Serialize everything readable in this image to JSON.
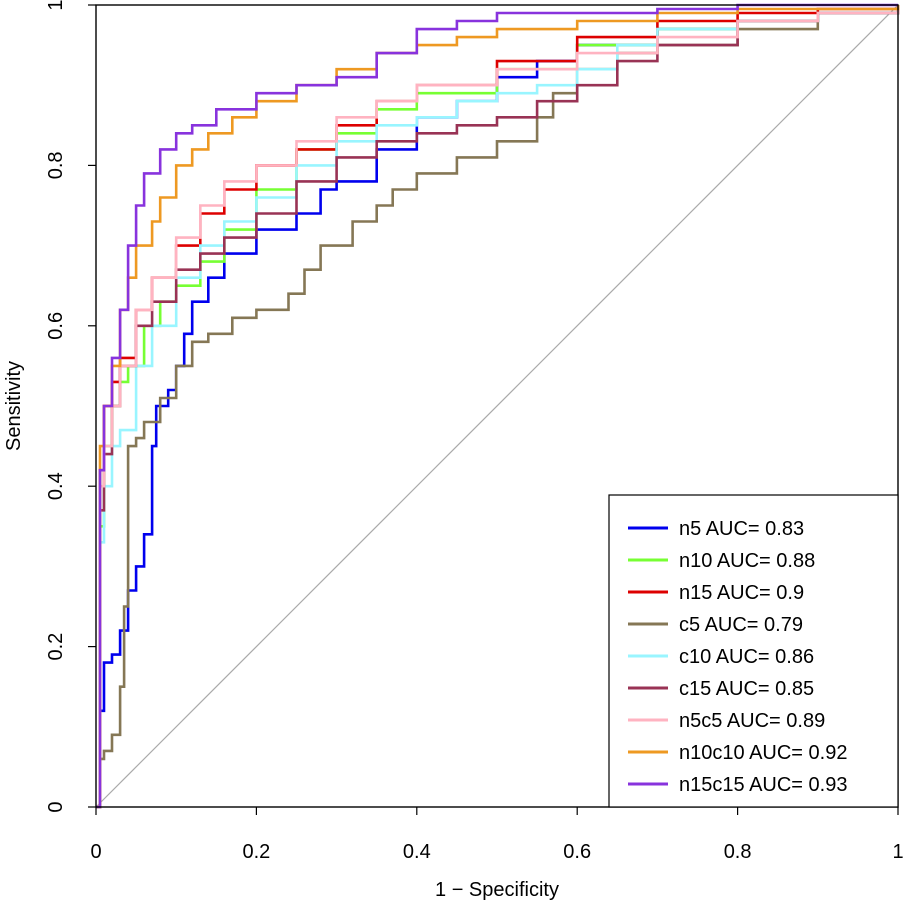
{
  "chart_data": {
    "type": "line",
    "title": "",
    "xlabel": "1 − Specificity",
    "ylabel": "Sensitivity",
    "xlim": [
      0,
      1
    ],
    "ylim": [
      0,
      1
    ],
    "x_ticks": [
      "0",
      "0.2",
      "0.4",
      "0.6",
      "0.8",
      "1"
    ],
    "y_ticks": [
      "0",
      "0.2",
      "0.4",
      "0.6",
      "0.8",
      "1"
    ],
    "reference_line": {
      "points": [
        [
          0,
          0
        ],
        [
          1,
          1
        ]
      ],
      "color": "#aaaaaa"
    },
    "legend_position": "bottom-right",
    "series": [
      {
        "name": "n5",
        "label": "n5 AUC= 0.83",
        "color": "#0000ee",
        "points": [
          [
            0,
            0
          ],
          [
            0.005,
            0.12
          ],
          [
            0.01,
            0.18
          ],
          [
            0.02,
            0.19
          ],
          [
            0.03,
            0.22
          ],
          [
            0.04,
            0.27
          ],
          [
            0.05,
            0.3
          ],
          [
            0.06,
            0.34
          ],
          [
            0.07,
            0.45
          ],
          [
            0.075,
            0.5
          ],
          [
            0.09,
            0.52
          ],
          [
            0.1,
            0.55
          ],
          [
            0.11,
            0.59
          ],
          [
            0.12,
            0.63
          ],
          [
            0.14,
            0.66
          ],
          [
            0.16,
            0.69
          ],
          [
            0.2,
            0.72
          ],
          [
            0.25,
            0.74
          ],
          [
            0.28,
            0.77
          ],
          [
            0.3,
            0.78
          ],
          [
            0.35,
            0.82
          ],
          [
            0.4,
            0.86
          ],
          [
            0.45,
            0.88
          ],
          [
            0.5,
            0.91
          ],
          [
            0.55,
            0.93
          ],
          [
            0.6,
            0.95
          ],
          [
            0.7,
            0.97
          ],
          [
            0.8,
            0.98
          ],
          [
            0.9,
            0.99
          ],
          [
            1,
            1
          ]
        ]
      },
      {
        "name": "n10",
        "label": "n10 AUC= 0.88",
        "color": "#77ff33",
        "points": [
          [
            0,
            0
          ],
          [
            0.005,
            0.35
          ],
          [
            0.01,
            0.45
          ],
          [
            0.02,
            0.5
          ],
          [
            0.03,
            0.53
          ],
          [
            0.04,
            0.55
          ],
          [
            0.06,
            0.6
          ],
          [
            0.08,
            0.63
          ],
          [
            0.1,
            0.65
          ],
          [
            0.13,
            0.68
          ],
          [
            0.16,
            0.72
          ],
          [
            0.2,
            0.77
          ],
          [
            0.25,
            0.82
          ],
          [
            0.3,
            0.84
          ],
          [
            0.35,
            0.87
          ],
          [
            0.4,
            0.89
          ],
          [
            0.5,
            0.92
          ],
          [
            0.6,
            0.95
          ],
          [
            0.7,
            0.97
          ],
          [
            0.8,
            0.98
          ],
          [
            0.9,
            0.99
          ],
          [
            1,
            1
          ]
        ]
      },
      {
        "name": "n15",
        "label": "n15 AUC= 0.9",
        "color": "#dd0000",
        "points": [
          [
            0,
            0
          ],
          [
            0.005,
            0.42
          ],
          [
            0.01,
            0.5
          ],
          [
            0.02,
            0.53
          ],
          [
            0.03,
            0.56
          ],
          [
            0.05,
            0.62
          ],
          [
            0.07,
            0.66
          ],
          [
            0.1,
            0.7
          ],
          [
            0.13,
            0.74
          ],
          [
            0.16,
            0.77
          ],
          [
            0.2,
            0.8
          ],
          [
            0.25,
            0.82
          ],
          [
            0.3,
            0.85
          ],
          [
            0.35,
            0.88
          ],
          [
            0.4,
            0.9
          ],
          [
            0.5,
            0.93
          ],
          [
            0.6,
            0.96
          ],
          [
            0.7,
            0.98
          ],
          [
            0.8,
            0.99
          ],
          [
            0.9,
            0.995
          ],
          [
            1,
            1
          ]
        ]
      },
      {
        "name": "c5",
        "label": "c5 AUC= 0.79",
        "color": "#857755",
        "points": [
          [
            0,
            0
          ],
          [
            0.005,
            0.06
          ],
          [
            0.01,
            0.07
          ],
          [
            0.02,
            0.09
          ],
          [
            0.03,
            0.15
          ],
          [
            0.035,
            0.25
          ],
          [
            0.04,
            0.45
          ],
          [
            0.05,
            0.46
          ],
          [
            0.06,
            0.48
          ],
          [
            0.08,
            0.51
          ],
          [
            0.1,
            0.55
          ],
          [
            0.12,
            0.58
          ],
          [
            0.14,
            0.59
          ],
          [
            0.17,
            0.61
          ],
          [
            0.2,
            0.62
          ],
          [
            0.24,
            0.64
          ],
          [
            0.26,
            0.67
          ],
          [
            0.28,
            0.7
          ],
          [
            0.32,
            0.73
          ],
          [
            0.35,
            0.75
          ],
          [
            0.37,
            0.77
          ],
          [
            0.4,
            0.79
          ],
          [
            0.45,
            0.81
          ],
          [
            0.5,
            0.83
          ],
          [
            0.55,
            0.86
          ],
          [
            0.57,
            0.89
          ],
          [
            0.6,
            0.92
          ],
          [
            0.65,
            0.94
          ],
          [
            0.7,
            0.95
          ],
          [
            0.8,
            0.97
          ],
          [
            0.9,
            0.99
          ],
          [
            1,
            1
          ]
        ]
      },
      {
        "name": "c10",
        "label": "c10 AUC= 0.86",
        "color": "#99f5ff",
        "points": [
          [
            0,
            0
          ],
          [
            0.005,
            0.33
          ],
          [
            0.01,
            0.4
          ],
          [
            0.02,
            0.45
          ],
          [
            0.03,
            0.47
          ],
          [
            0.05,
            0.55
          ],
          [
            0.07,
            0.6
          ],
          [
            0.1,
            0.66
          ],
          [
            0.13,
            0.7
          ],
          [
            0.16,
            0.73
          ],
          [
            0.2,
            0.76
          ],
          [
            0.25,
            0.8
          ],
          [
            0.3,
            0.83
          ],
          [
            0.35,
            0.85
          ],
          [
            0.4,
            0.86
          ],
          [
            0.45,
            0.88
          ],
          [
            0.5,
            0.89
          ],
          [
            0.55,
            0.9
          ],
          [
            0.6,
            0.92
          ],
          [
            0.65,
            0.95
          ],
          [
            0.7,
            0.97
          ],
          [
            0.8,
            0.98
          ],
          [
            0.9,
            0.99
          ],
          [
            1,
            1
          ]
        ]
      },
      {
        "name": "c15",
        "label": "c15 AUC= 0.85",
        "color": "#993355",
        "points": [
          [
            0,
            0
          ],
          [
            0.005,
            0.37
          ],
          [
            0.01,
            0.44
          ],
          [
            0.02,
            0.5
          ],
          [
            0.03,
            0.55
          ],
          [
            0.05,
            0.6
          ],
          [
            0.07,
            0.63
          ],
          [
            0.1,
            0.67
          ],
          [
            0.13,
            0.69
          ],
          [
            0.16,
            0.71
          ],
          [
            0.2,
            0.74
          ],
          [
            0.25,
            0.78
          ],
          [
            0.3,
            0.81
          ],
          [
            0.35,
            0.83
          ],
          [
            0.4,
            0.84
          ],
          [
            0.45,
            0.85
          ],
          [
            0.5,
            0.86
          ],
          [
            0.55,
            0.88
          ],
          [
            0.6,
            0.9
          ],
          [
            0.65,
            0.93
          ],
          [
            0.7,
            0.95
          ],
          [
            0.8,
            0.98
          ],
          [
            0.9,
            0.99
          ],
          [
            1,
            1
          ]
        ]
      },
      {
        "name": "n5c5",
        "label": "n5c5 AUC= 0.89",
        "color": "#ffb3c1",
        "points": [
          [
            0,
            0
          ],
          [
            0.005,
            0.4
          ],
          [
            0.01,
            0.45
          ],
          [
            0.02,
            0.5
          ],
          [
            0.03,
            0.55
          ],
          [
            0.05,
            0.62
          ],
          [
            0.07,
            0.66
          ],
          [
            0.1,
            0.71
          ],
          [
            0.13,
            0.75
          ],
          [
            0.16,
            0.78
          ],
          [
            0.2,
            0.8
          ],
          [
            0.25,
            0.83
          ],
          [
            0.3,
            0.86
          ],
          [
            0.35,
            0.88
          ],
          [
            0.4,
            0.9
          ],
          [
            0.5,
            0.92
          ],
          [
            0.6,
            0.94
          ],
          [
            0.7,
            0.96
          ],
          [
            0.8,
            0.98
          ],
          [
            0.9,
            0.99
          ],
          [
            1,
            1
          ]
        ]
      },
      {
        "name": "n10c10",
        "label": "n10c10 AUC= 0.92",
        "color": "#ee9922",
        "points": [
          [
            0,
            0
          ],
          [
            0.005,
            0.45
          ],
          [
            0.01,
            0.5
          ],
          [
            0.02,
            0.55
          ],
          [
            0.03,
            0.62
          ],
          [
            0.04,
            0.66
          ],
          [
            0.05,
            0.7
          ],
          [
            0.07,
            0.73
          ],
          [
            0.08,
            0.76
          ],
          [
            0.1,
            0.8
          ],
          [
            0.12,
            0.82
          ],
          [
            0.14,
            0.84
          ],
          [
            0.17,
            0.86
          ],
          [
            0.2,
            0.88
          ],
          [
            0.25,
            0.9
          ],
          [
            0.3,
            0.92
          ],
          [
            0.35,
            0.94
          ],
          [
            0.4,
            0.95
          ],
          [
            0.45,
            0.96
          ],
          [
            0.5,
            0.97
          ],
          [
            0.6,
            0.98
          ],
          [
            0.7,
            0.99
          ],
          [
            0.8,
            0.995
          ],
          [
            1,
            1
          ]
        ]
      },
      {
        "name": "n15c15",
        "label": "n15c15 AUC= 0.93",
        "color": "#8833dd",
        "points": [
          [
            0,
            0
          ],
          [
            0.005,
            0.42
          ],
          [
            0.01,
            0.5
          ],
          [
            0.02,
            0.56
          ],
          [
            0.03,
            0.62
          ],
          [
            0.04,
            0.7
          ],
          [
            0.05,
            0.75
          ],
          [
            0.06,
            0.79
          ],
          [
            0.08,
            0.82
          ],
          [
            0.1,
            0.84
          ],
          [
            0.12,
            0.85
          ],
          [
            0.15,
            0.87
          ],
          [
            0.2,
            0.89
          ],
          [
            0.25,
            0.9
          ],
          [
            0.3,
            0.91
          ],
          [
            0.35,
            0.94
          ],
          [
            0.4,
            0.97
          ],
          [
            0.45,
            0.98
          ],
          [
            0.5,
            0.99
          ],
          [
            0.6,
            0.99
          ],
          [
            0.7,
            0.995
          ],
          [
            0.8,
            1
          ],
          [
            1,
            1
          ]
        ]
      }
    ]
  }
}
